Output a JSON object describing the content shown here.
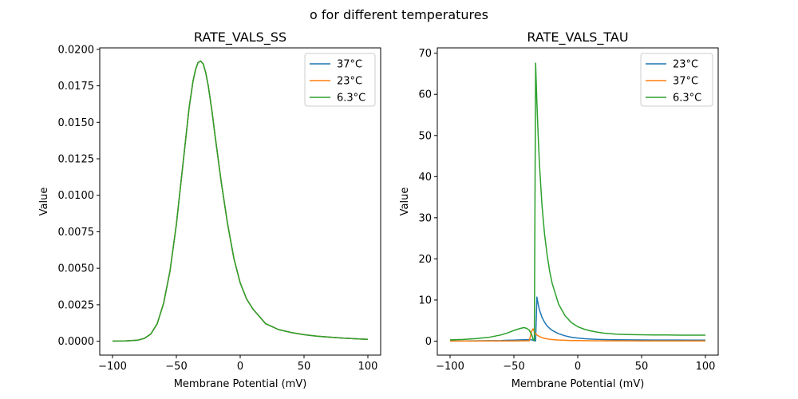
{
  "figure_title": "o for different temperatures",
  "chart_data": [
    {
      "type": "line",
      "title": "RATE_VALS_SS",
      "xlabel": "Membrane Potential (mV)",
      "ylabel": "Value",
      "xlim": [
        -110,
        110
      ],
      "ylim": [
        -0.00095,
        0.0201
      ],
      "xticks": [
        -100,
        -50,
        0,
        50,
        100
      ],
      "xtick_labels": [
        "−100",
        "−50",
        "0",
        "50",
        "100"
      ],
      "yticks": [
        0,
        0.0025,
        0.005,
        0.0075,
        0.01,
        0.0125,
        0.015,
        0.0175,
        0.02
      ],
      "ytick_labels": [
        "0.0000",
        "0.0025",
        "0.0050",
        "0.0075",
        "0.0100",
        "0.0125",
        "0.0150",
        "0.0175",
        "0.0200"
      ],
      "grid": false,
      "legend_position": "top-right",
      "x": [
        -100,
        -90,
        -80,
        -75,
        -70,
        -65,
        -60,
        -55,
        -50,
        -45,
        -40,
        -37,
        -35,
        -33,
        -31,
        -29,
        -27,
        -25,
        -22,
        -20,
        -15,
        -10,
        -5,
        0,
        5,
        10,
        15,
        20,
        25,
        30,
        40,
        50,
        60,
        70,
        80,
        90,
        100
      ],
      "series": [
        {
          "name": "37°C",
          "color": "#1f77b4",
          "values": [
            1e-05,
            2e-05,
            8e-05,
            0.0002,
            0.0005,
            0.0012,
            0.0026,
            0.0048,
            0.008,
            0.012,
            0.016,
            0.0178,
            0.0186,
            0.0191,
            0.0192,
            0.019,
            0.0184,
            0.0175,
            0.0157,
            0.0143,
            0.011,
            0.0081,
            0.0057,
            0.004,
            0.0029,
            0.0022,
            0.0017,
            0.0012,
            0.001,
            0.0008,
            0.0006,
            0.00045,
            0.00035,
            0.00028,
            0.00022,
            0.00017,
            0.00013
          ]
        },
        {
          "name": "23°C",
          "color": "#ff7f0e",
          "values": [
            1e-05,
            2e-05,
            8e-05,
            0.0002,
            0.0005,
            0.0012,
            0.0026,
            0.0048,
            0.008,
            0.012,
            0.016,
            0.0178,
            0.0186,
            0.0191,
            0.0192,
            0.019,
            0.0184,
            0.0175,
            0.0157,
            0.0143,
            0.011,
            0.0081,
            0.0057,
            0.004,
            0.0029,
            0.0022,
            0.0017,
            0.0012,
            0.001,
            0.0008,
            0.0006,
            0.00045,
            0.00035,
            0.00028,
            0.00022,
            0.00017,
            0.00013
          ]
        },
        {
          "name": "6.3°C",
          "color": "#2ca02c",
          "values": [
            1e-05,
            2e-05,
            8e-05,
            0.0002,
            0.0005,
            0.0012,
            0.0026,
            0.0048,
            0.008,
            0.012,
            0.016,
            0.0178,
            0.0186,
            0.0191,
            0.0192,
            0.019,
            0.0184,
            0.0175,
            0.0157,
            0.0143,
            0.011,
            0.0081,
            0.0057,
            0.004,
            0.0029,
            0.0022,
            0.0017,
            0.0012,
            0.001,
            0.0008,
            0.0006,
            0.00045,
            0.00035,
            0.00028,
            0.00022,
            0.00017,
            0.00013
          ]
        }
      ]
    },
    {
      "type": "line",
      "title": "RATE_VALS_TAU",
      "xlabel": "Membrane Potential (mV)",
      "ylabel": "Value",
      "xlim": [
        -110,
        110
      ],
      "ylim": [
        -3.4,
        71.3
      ],
      "xticks": [
        -100,
        -50,
        0,
        50,
        100
      ],
      "xtick_labels": [
        "−100",
        "−50",
        "0",
        "50",
        "100"
      ],
      "yticks": [
        0,
        10,
        20,
        30,
        40,
        50,
        60,
        70
      ],
      "ytick_labels": [
        "0",
        "10",
        "20",
        "30",
        "40",
        "50",
        "60",
        "70"
      ],
      "grid": false,
      "legend_position": "top-right",
      "x": [
        -100,
        -90,
        -80,
        -70,
        -60,
        -55,
        -50,
        -45,
        -42,
        -40,
        -38,
        -36,
        -35,
        -34,
        -33,
        -32,
        -31,
        -30,
        -28,
        -26,
        -24,
        -22,
        -20,
        -15,
        -10,
        -5,
        0,
        5,
        10,
        15,
        20,
        30,
        40,
        50,
        60,
        70,
        80,
        90,
        100
      ],
      "series": [
        {
          "name": "23°C",
          "color": "#1f77b4",
          "values": [
            0.05,
            0.06,
            0.08,
            0.11,
            0.16,
            0.2,
            0.25,
            0.3,
            0.33,
            0.35,
            0.35,
            0.3,
            0.2,
            0.1,
            0.05,
            10.7,
            9.0,
            7.6,
            5.8,
            4.6,
            3.7,
            3.1,
            2.6,
            1.8,
            1.3,
            0.95,
            0.75,
            0.6,
            0.5,
            0.42,
            0.38,
            0.33,
            0.3,
            0.28,
            0.27,
            0.26,
            0.26,
            0.25,
            0.25
          ]
        },
        {
          "name": "37°C",
          "color": "#ff7f0e",
          "values": [
            0.01,
            0.01,
            0.02,
            0.03,
            0.04,
            0.05,
            0.06,
            0.07,
            0.08,
            0.08,
            0.1,
            2.5,
            3.0,
            2.3,
            1.8,
            1.5,
            1.3,
            1.1,
            0.85,
            0.68,
            0.55,
            0.45,
            0.38,
            0.27,
            0.2,
            0.16,
            0.13,
            0.11,
            0.1,
            0.09,
            0.08,
            0.07,
            0.07,
            0.06,
            0.06,
            0.06,
            0.06,
            0.06,
            0.06
          ]
        },
        {
          "name": "6.3°C",
          "color": "#2ca02c",
          "values": [
            0.3,
            0.4,
            0.6,
            0.9,
            1.5,
            2.0,
            2.6,
            3.1,
            3.3,
            3.1,
            2.7,
            1.5,
            0.5,
            0.1,
            67.6,
            58.0,
            50.0,
            43.0,
            33.0,
            26.0,
            21.0,
            17.0,
            14.0,
            9.0,
            6.2,
            4.5,
            3.5,
            2.9,
            2.5,
            2.2,
            1.95,
            1.7,
            1.6,
            1.55,
            1.5,
            1.48,
            1.46,
            1.45,
            1.45
          ]
        }
      ]
    }
  ]
}
